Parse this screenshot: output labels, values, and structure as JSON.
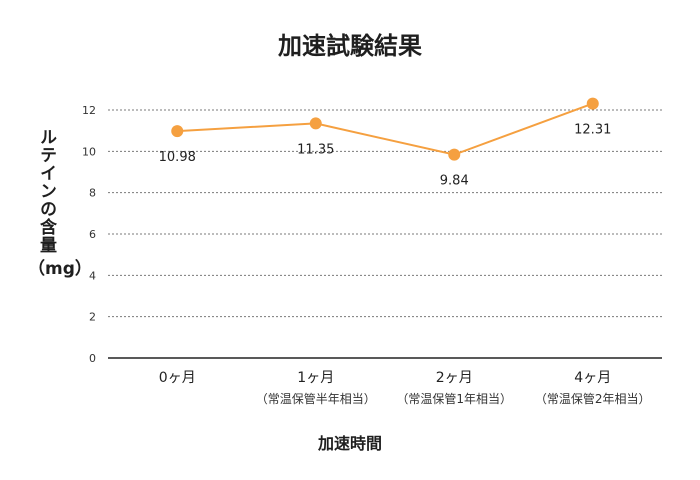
{
  "chart_data": {
    "type": "line",
    "title": "加速試験結果",
    "ylabel": "ルテインの含量",
    "yunit": "（mg）",
    "xlabel": "加速時間",
    "ylim": [
      0,
      12
    ],
    "yticks": [
      0,
      2,
      4,
      6,
      8,
      10,
      12
    ],
    "grid": true,
    "categories": [
      {
        "label": "0ヶ月",
        "sub": ""
      },
      {
        "label": "1ヶ月",
        "sub": "（常温保管半年相当）"
      },
      {
        "label": "2ヶ月",
        "sub": "（常温保管1年相当）"
      },
      {
        "label": "4ヶ月",
        "sub": "（常温保管2年相当）"
      }
    ],
    "series": [
      {
        "values": [
          10.98,
          11.35,
          9.84,
          12.31
        ],
        "labels": [
          "10.98",
          "11.35",
          "9.84",
          "12.31"
        ]
      }
    ],
    "colors": {
      "line": "#f5a040",
      "grid": "#7a7a7a",
      "axis": "#222222"
    }
  }
}
